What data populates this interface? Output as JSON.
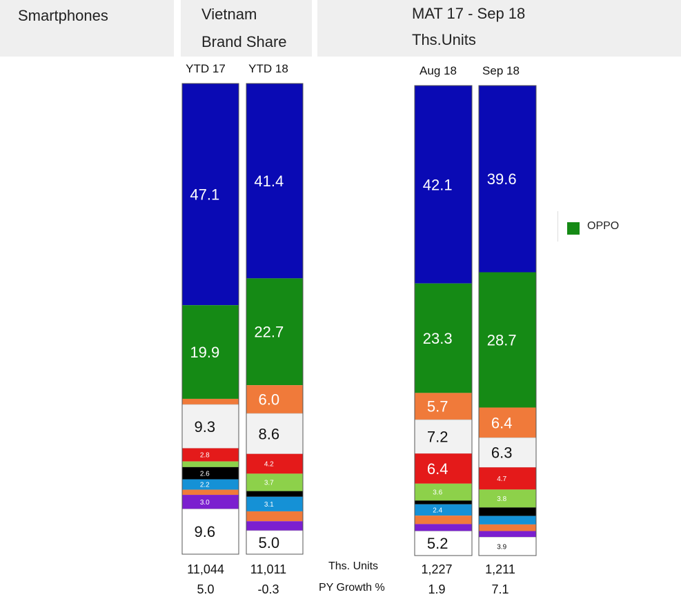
{
  "header": {
    "category": "Smartphones",
    "country": "Vietnam",
    "metric": "Brand Share",
    "period": "MAT 17 - Sep 18",
    "units": "Ths.Units"
  },
  "legend": {
    "label": "OPPO",
    "color": "#158a15"
  },
  "footer": {
    "units_label": "Ths. Units",
    "growth_label": "PY Growth %"
  },
  "chart_data": {
    "type": "bar",
    "stacked": true,
    "percent": true,
    "categories": [
      "YTD 17",
      "YTD 18",
      "Aug 18",
      "Sep 18"
    ],
    "units": [
      "11,044",
      "11,011",
      "1,227",
      "1,211"
    ],
    "growth": [
      "5.0",
      "-0.3",
      "1.9",
      "7.1"
    ],
    "series_colors": [
      "#0a0ab4",
      "#158a15",
      "#f07a3a",
      "#f2f2f2",
      "#e41a1a",
      "#8dd14a",
      "#000000",
      "#1591d6",
      "#f07a3a",
      "#7b1fcf",
      "#ffffff"
    ],
    "bars": [
      {
        "segments": [
          {
            "color": "#0a0ab4",
            "value": 47.1,
            "label": "47.1"
          },
          {
            "color": "#158a15",
            "value": 19.9,
            "label": "19.9"
          },
          {
            "color": "#f07a3a",
            "value": 1.2,
            "label": ""
          },
          {
            "color": "#f2f2f2",
            "value": 9.3,
            "label": "9.3"
          },
          {
            "color": "#e41a1a",
            "value": 2.8,
            "label": "2.8"
          },
          {
            "color": "#8dd14a",
            "value": 1.2,
            "label": ""
          },
          {
            "color": "#000000",
            "value": 2.6,
            "label": "2.6"
          },
          {
            "color": "#1591d6",
            "value": 2.2,
            "label": "2.2"
          },
          {
            "color": "#f07a3a",
            "value": 1.1,
            "label": ""
          },
          {
            "color": "#7b1fcf",
            "value": 3.0,
            "label": "3.0"
          },
          {
            "color": "#ffffff",
            "value": 9.6,
            "label": "9.6"
          }
        ]
      },
      {
        "segments": [
          {
            "color": "#0a0ab4",
            "value": 41.4,
            "label": "41.4"
          },
          {
            "color": "#158a15",
            "value": 22.7,
            "label": "22.7"
          },
          {
            "color": "#f07a3a",
            "value": 6.0,
            "label": "6.0"
          },
          {
            "color": "#f2f2f2",
            "value": 8.6,
            "label": "8.6"
          },
          {
            "color": "#e41a1a",
            "value": 4.2,
            "label": "4.2"
          },
          {
            "color": "#8dd14a",
            "value": 3.7,
            "label": "3.7"
          },
          {
            "color": "#000000",
            "value": 1.2,
            "label": ""
          },
          {
            "color": "#1591d6",
            "value": 3.1,
            "label": "3.1"
          },
          {
            "color": "#f07a3a",
            "value": 2.1,
            "label": ""
          },
          {
            "color": "#7b1fcf",
            "value": 2.0,
            "label": ""
          },
          {
            "color": "#ffffff",
            "value": 5.0,
            "label": "5.0"
          }
        ]
      },
      {
        "segments": [
          {
            "color": "#0a0ab4",
            "value": 42.1,
            "label": "42.1"
          },
          {
            "color": "#158a15",
            "value": 23.3,
            "label": "23.3"
          },
          {
            "color": "#f07a3a",
            "value": 5.7,
            "label": "5.7"
          },
          {
            "color": "#f2f2f2",
            "value": 7.2,
            "label": "7.2"
          },
          {
            "color": "#e41a1a",
            "value": 6.4,
            "label": "6.4"
          },
          {
            "color": "#8dd14a",
            "value": 3.6,
            "label": "3.6"
          },
          {
            "color": "#000000",
            "value": 0.8,
            "label": ""
          },
          {
            "color": "#1591d6",
            "value": 2.4,
            "label": "2.4"
          },
          {
            "color": "#f07a3a",
            "value": 1.8,
            "label": ""
          },
          {
            "color": "#7b1fcf",
            "value": 1.5,
            "label": ""
          },
          {
            "color": "#ffffff",
            "value": 5.2,
            "label": "5.2"
          }
        ]
      },
      {
        "segments": [
          {
            "color": "#0a0ab4",
            "value": 39.6,
            "label": "39.6"
          },
          {
            "color": "#158a15",
            "value": 28.7,
            "label": "28.7"
          },
          {
            "color": "#f07a3a",
            "value": 6.4,
            "label": "6.4"
          },
          {
            "color": "#f2f2f2",
            "value": 6.3,
            "label": "6.3"
          },
          {
            "color": "#e41a1a",
            "value": 4.7,
            "label": "4.7"
          },
          {
            "color": "#8dd14a",
            "value": 3.8,
            "label": "3.8"
          },
          {
            "color": "#000000",
            "value": 1.8,
            "label": ""
          },
          {
            "color": "#1591d6",
            "value": 1.8,
            "label": ""
          },
          {
            "color": "#f07a3a",
            "value": 1.4,
            "label": ""
          },
          {
            "color": "#7b1fcf",
            "value": 1.3,
            "label": ""
          },
          {
            "color": "#ffffff",
            "value": 3.9,
            "label": "3.9"
          }
        ]
      }
    ]
  }
}
